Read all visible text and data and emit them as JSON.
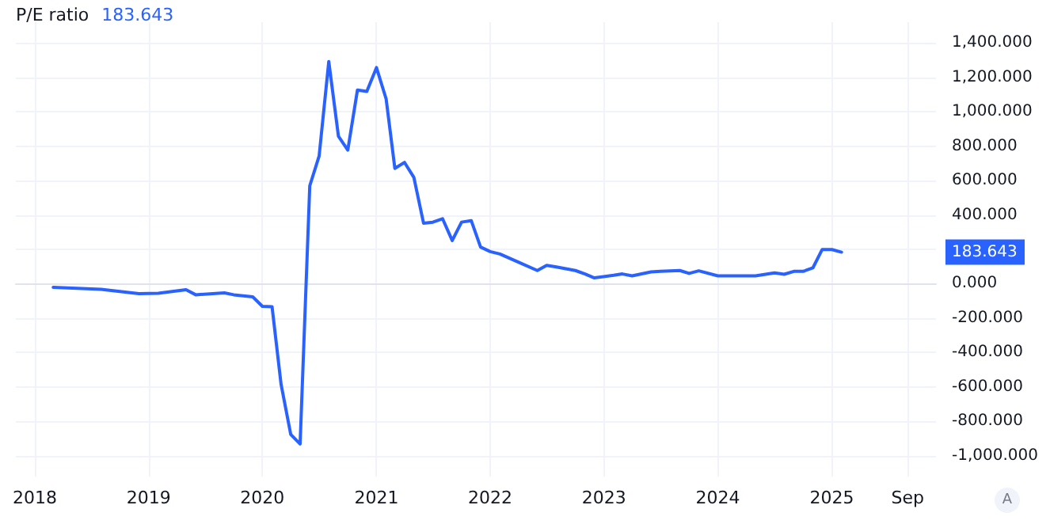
{
  "chart_data": {
    "type": "line",
    "title": "P/E ratio",
    "annotations": [
      "183.643",
      "A",
      "183.643"
    ],
    "x": [
      "2018-03",
      "2018-08",
      "2018-12",
      "2019-02",
      "2019-05",
      "2019-06",
      "2019-09",
      "2019-10",
      "2019-12",
      "2020-01",
      "2020-02",
      "2020-03",
      "2020-04",
      "2020-05",
      "2020-06",
      "2020-07",
      "2020-08",
      "2020-09",
      "2020-10",
      "2020-11",
      "2020-12",
      "2021-01",
      "2021-02",
      "2021-03",
      "2021-04",
      "2021-05",
      "2021-06",
      "2021-07",
      "2021-08",
      "2021-09",
      "2021-10",
      "2021-11",
      "2021-12",
      "2022-01",
      "2022-02",
      "2022-04",
      "2022-06",
      "2022-07",
      "2022-08",
      "2022-10",
      "2022-11",
      "2022-12",
      "2023-02",
      "2023-03",
      "2023-04",
      "2023-06",
      "2023-07",
      "2023-09",
      "2023-10",
      "2023-11",
      "2024-01",
      "2024-03",
      "2024-05",
      "2024-07",
      "2024-08",
      "2024-09",
      "2024-10",
      "2024-11",
      "2024-12",
      "2025-01",
      "2025-02"
    ],
    "series": [
      {
        "color": "#2962ff",
        "values": [
          -21,
          -32,
          -58,
          -55,
          -35,
          -64,
          -53,
          -64,
          -76,
          -131,
          -133,
          -585,
          -876,
          -931,
          569,
          742,
          1291,
          857,
          777,
          1126,
          1118,
          1256,
          1074,
          670,
          705,
          618,
          352,
          358,
          378,
          251,
          358,
          367,
          213,
          187,
          173,
          126,
          77,
          107,
          98,
          77,
          57,
          34,
          49,
          57,
          46,
          69,
          72,
          77,
          60,
          75,
          46,
          46,
          46,
          63,
          55,
          72,
          72,
          92,
          199,
          199,
          183.643
        ]
      }
    ],
    "xlim": [
      "2017-11",
      "2025-12"
    ],
    "xticks": [
      {
        "value": "2018-01",
        "label": "2018"
      },
      {
        "value": "2019-01",
        "label": "2019"
      },
      {
        "value": "2020-01",
        "label": "2020"
      },
      {
        "value": "2021-01",
        "label": "2021"
      },
      {
        "value": "2022-01",
        "label": "2022"
      },
      {
        "value": "2023-01",
        "label": "2023"
      },
      {
        "value": "2024-01",
        "label": "2024"
      },
      {
        "value": "2025-01",
        "label": "2025"
      },
      {
        "value": "2025-09",
        "label": "Sep"
      }
    ],
    "ylim": [
      -1120,
      1520
    ],
    "yticks": [
      {
        "value": -1000,
        "label": "-1,000.000"
      },
      {
        "value": -800,
        "label": "-800.000"
      },
      {
        "value": -600,
        "label": "-600.000"
      },
      {
        "value": -400,
        "label": "-400.000"
      },
      {
        "value": -200,
        "label": "-200.000"
      },
      {
        "value": 0,
        "label": "0.000"
      },
      {
        "value": 200,
        "label": null
      },
      {
        "value": 400,
        "label": "400.000"
      },
      {
        "value": 600,
        "label": "600.000"
      },
      {
        "value": 800,
        "label": "800.000"
      },
      {
        "value": 1000,
        "label": "1,000.000"
      },
      {
        "value": 1200,
        "label": "1,200.000"
      },
      {
        "value": 1400,
        "label": "1,400.000"
      }
    ],
    "grid": true,
    "marker": "none",
    "line_style": "solid"
  }
}
